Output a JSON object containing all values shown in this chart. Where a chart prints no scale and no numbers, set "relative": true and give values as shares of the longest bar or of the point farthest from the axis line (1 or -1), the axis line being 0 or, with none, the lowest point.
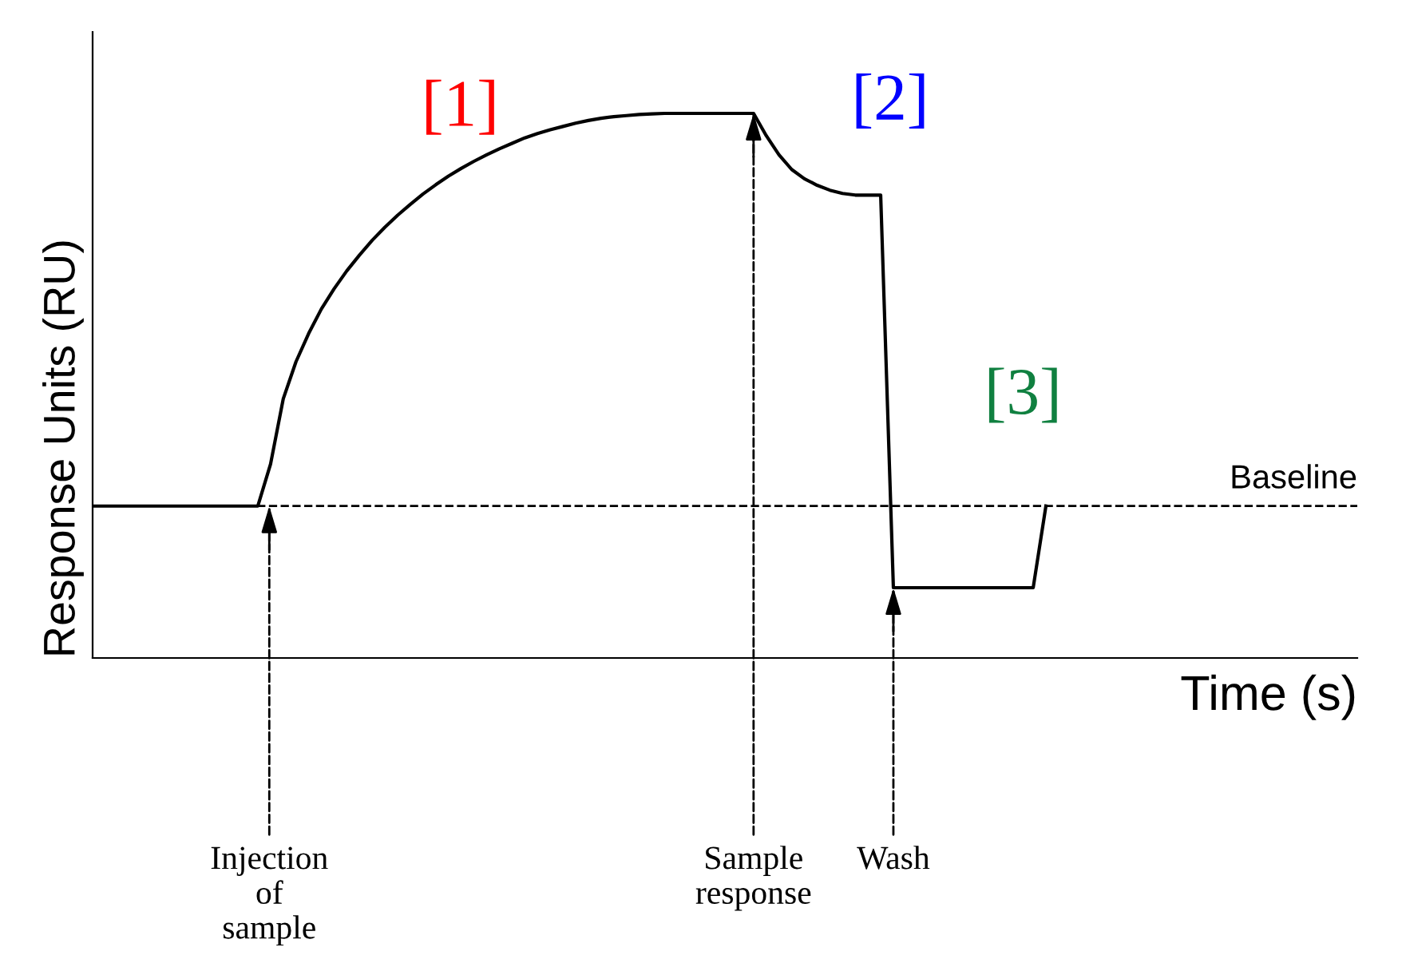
{
  "chart_data": {
    "type": "line",
    "relative": true,
    "xlabel": "Time (s)",
    "ylabel": "Response Units (RU)",
    "categories": [
      null,
      null,
      null,
      null,
      null,
      null,
      null,
      null,
      null,
      null,
      null,
      null,
      null,
      null,
      null,
      null,
      null,
      null,
      null,
      null,
      null,
      null,
      null,
      null,
      null,
      null,
      null,
      null,
      null,
      null,
      null,
      null,
      null,
      null,
      null,
      null,
      null,
      null,
      null,
      null,
      null,
      null,
      null,
      null,
      null,
      null,
      null,
      null,
      null,
      null,
      null,
      null,
      null,
      null,
      null,
      null,
      null,
      null,
      null,
      null,
      null,
      null,
      null,
      null,
      null,
      null,
      null,
      null,
      null,
      null,
      null,
      null,
      null,
      null,
      null,
      null
    ],
    "series": [
      {
        "color": "#000000",
        "values": [
          0.279,
          0.279,
          0.279,
          0.279,
          0.279,
          0.279,
          0.279,
          0.279,
          0.279,
          0.279,
          0.279,
          0.279,
          0.279,
          0.279,
          0.356,
          0.476,
          0.544,
          0.596,
          0.641,
          0.678,
          0.711,
          0.74,
          0.767,
          0.791,
          0.813,
          0.833,
          0.852,
          0.869,
          0.885,
          0.899,
          0.912,
          0.924,
          0.935,
          0.945,
          0.955,
          0.963,
          0.97,
          0.976,
          0.982,
          0.987,
          0.991,
          0.994,
          0.996,
          0.998,
          0.999,
          1,
          1,
          1,
          1,
          1,
          1,
          1,
          1,
          0.959,
          0.924,
          0.897,
          0.88,
          0.868,
          0.859,
          0.853,
          0.85,
          0.85,
          0.85,
          0.129,
          0.129,
          0.129,
          0.129,
          0.129,
          0.129,
          0.129,
          0.129,
          0.129,
          0.129,
          0.129,
          0.129,
          0.279
        ]
      }
    ],
    "ref_lines": [
      {
        "axis": "y",
        "value": 0.279,
        "label": "Baseline",
        "color": "#000000",
        "line_style": "dashed"
      }
    ],
    "marker": "none",
    "line_style": "solid",
    "grid": false,
    "legend": false,
    "annotations": [
      "[1]",
      "[2]",
      "[3]",
      "Injection\nof\nsample",
      "Sample\nresponse",
      "Wash"
    ]
  }
}
